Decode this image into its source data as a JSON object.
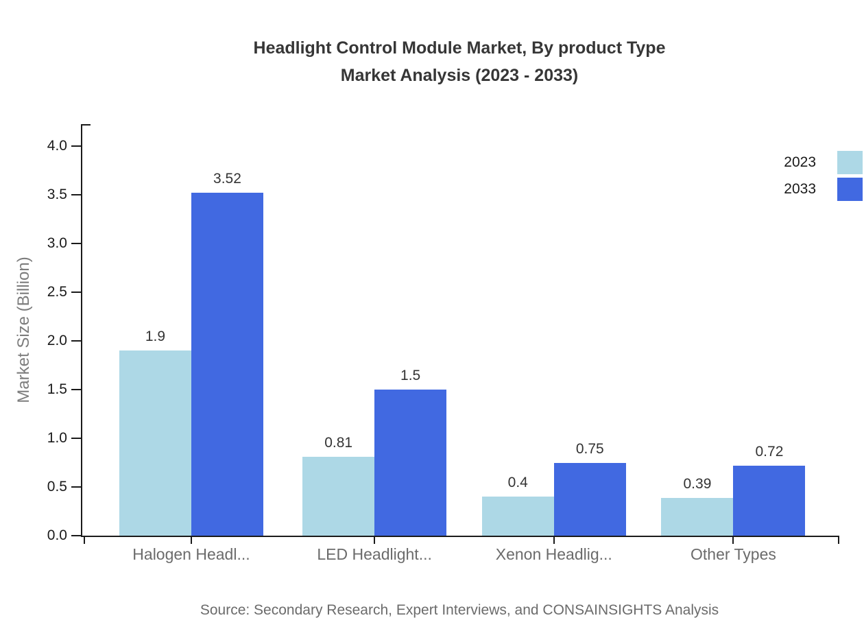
{
  "chart_data": {
    "type": "bar",
    "title": "Headlight Control Module Market, By product Type Market Analysis (2023 - 2033)",
    "title_lines": [
      "Headlight Control Module Market, By product Type",
      "Market Analysis (2023 - 2033)"
    ],
    "categories": [
      "Halogen Headl...",
      "LED Headlight...",
      "Xenon Headlig...",
      "Other Types"
    ],
    "series": [
      {
        "name": "2023",
        "color": "#ADD8E6",
        "values": [
          1.9,
          0.81,
          0.4,
          0.39
        ]
      },
      {
        "name": "2033",
        "color": "#4169E1",
        "values": [
          3.52,
          1.5,
          0.75,
          0.72
        ]
      }
    ],
    "xlabel": "",
    "ylabel": "Market Size (Billion)",
    "ylim": [
      0,
      4.0
    ],
    "ytick_step": 0.5,
    "yticks": [
      "0.0",
      "0.5",
      "1.0",
      "1.5",
      "2.0",
      "2.5",
      "3.0",
      "3.5",
      "4.0"
    ],
    "grid": false,
    "legend_position": "top-right",
    "axis_color": "#1a1a1a",
    "source": "Source: Secondary Research, Expert Interviews, and CONSAINSIGHTS Analysis"
  }
}
